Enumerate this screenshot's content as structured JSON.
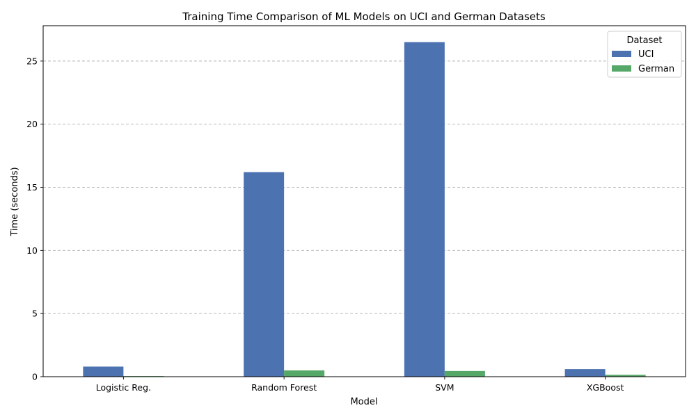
{
  "chart_data": {
    "type": "bar",
    "title": "Training Time Comparison of ML Models on UCI and German Datasets",
    "xlabel": "Model",
    "ylabel": "Time (seconds)",
    "categories": [
      "Logistic Reg.",
      "Random Forest",
      "SVM",
      "XGBoost"
    ],
    "series": [
      {
        "name": "UCI",
        "color": "#4c72b0",
        "values": [
          0.8,
          16.2,
          26.5,
          0.6
        ]
      },
      {
        "name": "German",
        "color": "#55a868",
        "values": [
          0.05,
          0.5,
          0.45,
          0.15
        ]
      }
    ],
    "ylim": [
      0,
      27.8
    ],
    "yticks": [
      0,
      5,
      10,
      15,
      20,
      25
    ],
    "grid": "y-dashed",
    "legend": {
      "title": "Dataset",
      "placement": "top-right"
    }
  }
}
